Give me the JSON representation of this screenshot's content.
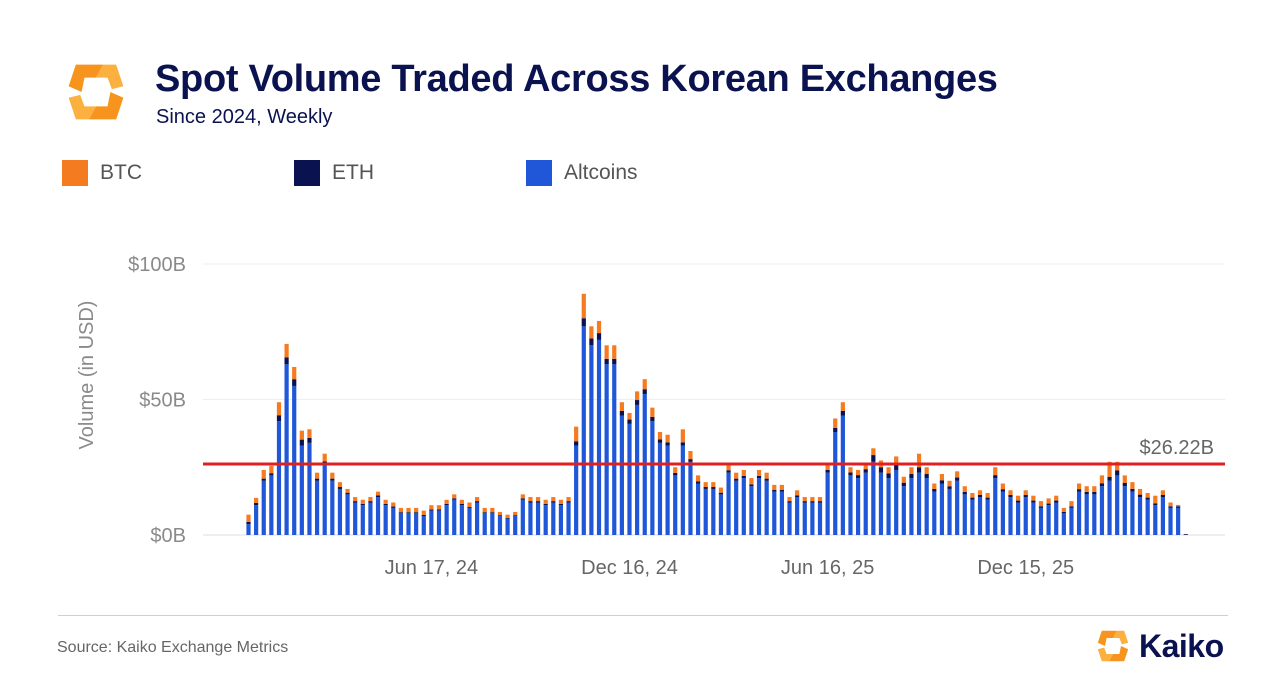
{
  "header": {
    "title": "Spot Volume Traded Across Korean Exchanges",
    "subtitle": "Since 2024, Weekly",
    "logo_icon": "kaiko-logo-icon"
  },
  "footer": {
    "source": "Source: Kaiko Exchange Metrics",
    "brand": "Kaiko",
    "brand_icon": "kaiko-logo-icon"
  },
  "colors": {
    "btc": "#f47b20",
    "eth": "#0a1250",
    "altcoins": "#1f57d8",
    "reference_line": "#e02020",
    "brand_orange": "#f7941d",
    "brand_navy": "#0a1250"
  },
  "chart_data": {
    "type": "bar",
    "stacked": true,
    "interval": "weekly",
    "start_week": "2024-01-01",
    "ylabel": "Volume (in USD)",
    "ylim": [
      0,
      110
    ],
    "yticks": [
      0,
      50,
      100
    ],
    "ytick_labels": [
      "$0B",
      "$50B",
      "$100B"
    ],
    "xtick_labels": [
      {
        "label": "Jun 17, 24",
        "week": "2024-06-17"
      },
      {
        "label": "Dec 16, 24",
        "week": "2024-12-16"
      },
      {
        "label": "Jun 16, 25",
        "week": "2025-06-16"
      },
      {
        "label": "Dec 15, 25",
        "week": "2025-12-15"
      }
    ],
    "legend": [
      "BTC",
      "ETH",
      "Altcoins"
    ],
    "legend_position": "top-left",
    "grid": "horizontal",
    "reference_line": {
      "value": 26.22,
      "label": "$26.22B"
    },
    "series": [
      {
        "name": "Altcoins",
        "values": [
          4,
          11,
          20,
          22,
          42,
          63,
          55,
          33,
          34,
          20,
          26,
          20,
          17,
          15,
          12,
          11,
          12,
          14,
          11,
          10,
          8,
          8,
          8,
          7,
          9,
          9,
          11,
          13,
          11,
          10,
          12,
          8,
          8,
          7,
          6,
          7,
          13,
          12,
          12,
          11,
          12,
          11,
          12,
          33,
          77,
          70,
          72,
          63,
          63,
          44,
          41,
          48,
          52,
          42,
          34,
          33,
          22,
          33,
          27,
          19,
          17,
          17,
          15,
          23,
          20,
          21,
          18,
          21,
          20,
          16,
          16,
          12,
          14,
          12,
          12,
          12,
          23,
          38,
          44,
          22,
          21,
          23,
          27,
          23,
          21,
          24,
          18,
          21,
          23,
          21,
          16,
          19,
          17,
          20,
          15,
          13,
          14,
          13,
          21,
          16,
          14,
          12,
          14,
          12,
          10,
          11,
          12,
          8,
          10,
          16,
          15,
          15,
          18,
          20,
          22,
          18,
          16,
          14,
          13,
          11,
          14,
          10,
          10,
          0
        ]
      },
      {
        "name": "ETH",
        "values": [
          0.8,
          0.8,
          0.8,
          0.8,
          2.2,
          2.5,
          2.5,
          2.2,
          1.8,
          0.8,
          1.2,
          0.8,
          0.7,
          0.6,
          0.5,
          0.5,
          0.5,
          0.6,
          0.5,
          0.5,
          0.4,
          0.4,
          0.4,
          0.4,
          0.4,
          0.4,
          0.5,
          0.5,
          0.5,
          0.4,
          0.5,
          0.4,
          0.4,
          0.3,
          0.3,
          0.3,
          0.5,
          0.5,
          0.5,
          0.5,
          0.5,
          0.5,
          0.5,
          1.5,
          3,
          2.5,
          2.5,
          2,
          2,
          1.8,
          1.6,
          1.8,
          1.8,
          1.6,
          1.3,
          1.2,
          0.9,
          1.2,
          1,
          0.8,
          0.7,
          0.7,
          0.6,
          0.9,
          0.8,
          0.8,
          0.7,
          0.8,
          0.8,
          0.6,
          0.6,
          0.5,
          0.6,
          0.5,
          0.5,
          0.5,
          1,
          1.5,
          1.8,
          1.1,
          1.1,
          1.3,
          2.5,
          2,
          1.7,
          2,
          1.3,
          1.5,
          2,
          1.5,
          1,
          1.2,
          1,
          1.2,
          0.9,
          0.8,
          0.8,
          0.8,
          1.1,
          0.9,
          0.8,
          0.7,
          0.8,
          0.7,
          0.6,
          0.6,
          0.7,
          0.5,
          0.6,
          0.9,
          0.9,
          0.9,
          1.1,
          1.5,
          1.8,
          1.2,
          1,
          0.9,
          0.8,
          0.7,
          0.8,
          0.6,
          0.6,
          0.3
        ]
      },
      {
        "name": "BTC",
        "values": [
          2.7,
          1.9,
          3.2,
          2.7,
          4.8,
          5,
          4.5,
          3.3,
          3.2,
          2.2,
          2.8,
          2.2,
          1.8,
          1.4,
          1.5,
          1.5,
          1.5,
          1.4,
          1.5,
          1.5,
          1.6,
          1.6,
          1.6,
          1.6,
          1.6,
          1.6,
          1.5,
          1.5,
          1.5,
          1.6,
          1.5,
          1.6,
          1.6,
          1.2,
          1.2,
          1.2,
          1.5,
          1.5,
          1.5,
          1.5,
          1.5,
          1.5,
          1.5,
          5.5,
          9,
          4.5,
          4.5,
          5,
          5,
          3.2,
          2.4,
          3.2,
          3.7,
          3.4,
          2.7,
          2.8,
          2.1,
          4.8,
          3,
          2.2,
          1.8,
          1.8,
          1.9,
          2.6,
          2.2,
          2.2,
          2.3,
          2.2,
          2.2,
          1.9,
          1.9,
          1.5,
          1.9,
          1.5,
          1.5,
          1.5,
          2,
          3.5,
          3.2,
          1.9,
          1.9,
          2.2,
          2.5,
          2.5,
          2.3,
          3,
          2.2,
          2.5,
          5,
          2.5,
          2,
          2.3,
          2,
          2.3,
          2.1,
          1.7,
          1.7,
          1.7,
          2.9,
          2.1,
          1.7,
          1.8,
          1.7,
          1.8,
          1.9,
          1.9,
          1.8,
          1.5,
          1.9,
          2.1,
          2.1,
          2.1,
          2.9,
          5.5,
          3.2,
          2.8,
          2.5,
          2.1,
          1.7,
          2.8,
          1.7,
          1.4,
          0.5
        ]
      }
    ]
  }
}
